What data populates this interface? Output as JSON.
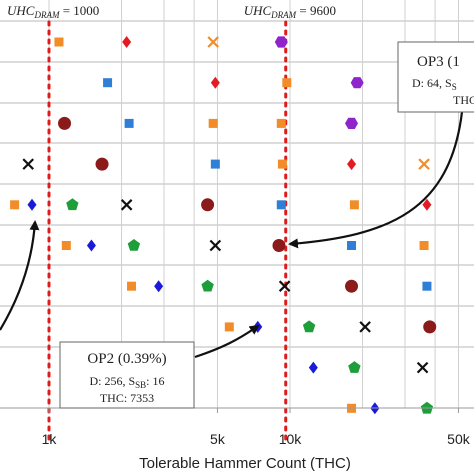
{
  "chart_data": {
    "type": "scatter",
    "xlabel": "Tolerable Hammer Count (THC)",
    "x_scale": "log",
    "xlim": [
      230,
      55000
    ],
    "x_ticks": [
      {
        "value": 1000,
        "label": "1k"
      },
      {
        "value": 5000,
        "label": "5k"
      },
      {
        "value": 10000,
        "label": "10k"
      },
      {
        "value": 50000,
        "label": "50k"
      }
    ],
    "grid": true,
    "thresholds": [
      {
        "x": 1000,
        "label": "UHC",
        "sub": "DRAM",
        "value_text": "= 1000"
      },
      {
        "x": 9600,
        "label": "UHC",
        "sub": "DRAM",
        "value_text": "= 9600"
      }
    ],
    "rows": [
      {
        "points": [
          {
            "x": 290,
            "marker": "square",
            "color": "#2f7fd6"
          },
          {
            "x": 1100,
            "marker": "square",
            "color": "#f28c28"
          },
          {
            "x": 2100,
            "marker": "diamond",
            "color": "#e31b23"
          },
          {
            "x": 4800,
            "marker": "cross",
            "color": "#f28c28"
          },
          {
            "x": 9200,
            "marker": "hexagon",
            "color": "#8e24c9"
          }
        ]
      },
      {
        "points": [
          {
            "x": 290,
            "marker": "circle",
            "color": "#8b1a1a"
          },
          {
            "x": 1750,
            "marker": "square",
            "color": "#2f7fd6"
          },
          {
            "x": 4900,
            "marker": "diamond",
            "color": "#e31b23"
          },
          {
            "x": 9700,
            "marker": "square",
            "color": "#f28c28"
          },
          {
            "x": 19000,
            "marker": "hexagon",
            "color": "#8e24c9"
          }
        ]
      },
      {
        "points": [
          {
            "x": 280,
            "marker": "star",
            "color": "#111111"
          },
          {
            "x": 1160,
            "marker": "circle",
            "color": "#8b1a1a"
          },
          {
            "x": 2150,
            "marker": "square",
            "color": "#2f7fd6"
          },
          {
            "x": 4800,
            "marker": "square",
            "color": "#f28c28"
          },
          {
            "x": 9200,
            "marker": "square",
            "color": "#f28c28"
          },
          {
            "x": 18000,
            "marker": "hexagon",
            "color": "#8e24c9"
          }
        ]
      },
      {
        "points": [
          {
            "x": 230,
            "marker": "diamond",
            "color": "#1a1adb"
          },
          {
            "x": 400,
            "marker": "pentagon",
            "color": "#1e9e3a"
          },
          {
            "x": 820,
            "marker": "cross",
            "color": "#111111"
          },
          {
            "x": 1660,
            "marker": "circle",
            "color": "#8b1a1a"
          },
          {
            "x": 4900,
            "marker": "square",
            "color": "#2f7fd6"
          },
          {
            "x": 9300,
            "marker": "square",
            "color": "#f28c28"
          },
          {
            "x": 18000,
            "marker": "diamond",
            "color": "#e31b23"
          },
          {
            "x": 36000,
            "marker": "cross",
            "color": "#f28c28"
          }
        ]
      },
      {
        "points": [
          {
            "x": 720,
            "marker": "square",
            "color": "#f28c28"
          },
          {
            "x": 850,
            "marker": "diamond",
            "color": "#1a1adb"
          },
          {
            "x": 1250,
            "marker": "pentagon",
            "color": "#1e9e3a"
          },
          {
            "x": 2100,
            "marker": "cross",
            "color": "#111111"
          },
          {
            "x": 4550,
            "marker": "circle",
            "color": "#8b1a1a"
          },
          {
            "x": 9200,
            "marker": "square",
            "color": "#2f7fd6"
          },
          {
            "x": 18500,
            "marker": "square",
            "color": "#f28c28"
          },
          {
            "x": 37000,
            "marker": "diamond",
            "color": "#e31b23"
          }
        ]
      },
      {
        "points": [
          {
            "x": 1180,
            "marker": "square",
            "color": "#f28c28"
          },
          {
            "x": 1500,
            "marker": "diamond",
            "color": "#1a1adb"
          },
          {
            "x": 2250,
            "marker": "pentagon",
            "color": "#1e9e3a"
          },
          {
            "x": 4900,
            "marker": "cross",
            "color": "#111111"
          },
          {
            "x": 9000,
            "marker": "circle",
            "color": "#8b1a1a"
          },
          {
            "x": 18000,
            "marker": "square",
            "color": "#2f7fd6"
          },
          {
            "x": 36000,
            "marker": "square",
            "color": "#f28c28"
          }
        ]
      },
      {
        "points": [
          {
            "x": 2200,
            "marker": "square",
            "color": "#f28c28"
          },
          {
            "x": 2850,
            "marker": "diamond",
            "color": "#1a1adb"
          },
          {
            "x": 4550,
            "marker": "pentagon",
            "color": "#1e9e3a"
          },
          {
            "x": 9500,
            "marker": "cross",
            "color": "#111111"
          },
          {
            "x": 18000,
            "marker": "circle",
            "color": "#8b1a1a"
          },
          {
            "x": 37000,
            "marker": "square",
            "color": "#2f7fd6"
          }
        ]
      },
      {
        "points": [
          {
            "x": 5600,
            "marker": "square",
            "color": "#f28c28"
          },
          {
            "x": 7350,
            "marker": "diamond",
            "color": "#1a1adb"
          },
          {
            "x": 12000,
            "marker": "pentagon",
            "color": "#1e9e3a"
          },
          {
            "x": 20500,
            "marker": "cross",
            "color": "#111111"
          },
          {
            "x": 38000,
            "marker": "circle",
            "color": "#8b1a1a"
          }
        ]
      },
      {
        "points": [
          {
            "x": 12500,
            "marker": "diamond",
            "color": "#1a1adb"
          },
          {
            "x": 18500,
            "marker": "pentagon",
            "color": "#1e9e3a"
          },
          {
            "x": 35500,
            "marker": "cross",
            "color": "#111111"
          }
        ]
      },
      {
        "points": [
          {
            "x": 18000,
            "marker": "square",
            "color": "#f28c28"
          },
          {
            "x": 22500,
            "marker": "diamond",
            "color": "#1a1adb"
          },
          {
            "x": 37000,
            "marker": "pentagon",
            "color": "#1e9e3a"
          }
        ]
      }
    ],
    "annotations": [
      {
        "id": "op2",
        "title": "OP2 (0.39%)",
        "line1_prefix": "D: 256, S",
        "line1_sub": "SB",
        "line1_suffix": ": 16",
        "line2": "THC: 7353",
        "target_x": 7350,
        "target_row": 7
      },
      {
        "id": "op3",
        "title": "OP3 (1",
        "line1_prefix": "D: 64, S",
        "line1_sub": "S",
        "line1_suffix": "",
        "line2": "THC",
        "target_x": 9000,
        "target_row": 5
      }
    ]
  }
}
